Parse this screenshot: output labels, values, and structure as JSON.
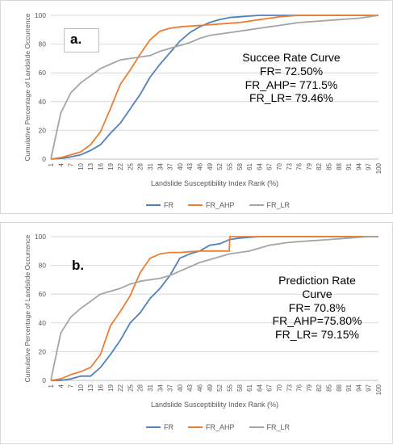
{
  "chart_data": [
    {
      "type": "line",
      "panel_label": "a.",
      "annotation": [
        "Succee Rate Curve",
        "FR= 72.50%",
        "FR_AHP= 771.5%",
        "FR_LR= 79.46%"
      ],
      "ylabel": "Cumulative Percentage of Landslide Occurrence",
      "xlabel": "Landslide Susceptibility Index Rank (%)",
      "ylim": [
        0,
        100
      ],
      "yticks": [
        0,
        20,
        40,
        60,
        80,
        100
      ],
      "x_ticks": [
        "1",
        "4",
        "7",
        "10",
        "13",
        "16",
        "19",
        "22",
        "25",
        "28",
        "31",
        "34",
        "37",
        "40",
        "43",
        "46",
        "49",
        "52",
        "55",
        "58",
        "61",
        "64",
        "67",
        "70",
        "73",
        "76",
        "79",
        "82",
        "85",
        "88",
        "91",
        "94",
        "97",
        "100"
      ],
      "grid": true,
      "legend_position": "bottom",
      "series": [
        {
          "name": "FR",
          "color": "#4f81bd",
          "x": [
            1,
            4,
            7,
            10,
            13,
            16,
            19,
            22,
            25,
            28,
            31,
            34,
            37,
            40,
            43,
            46,
            49,
            52,
            55,
            58,
            61,
            64,
            67,
            70,
            73,
            76,
            79,
            82,
            85,
            88,
            91,
            94,
            97,
            100
          ],
          "values": [
            0,
            0.5,
            1.5,
            3,
            6,
            10,
            18,
            25,
            35,
            45,
            57,
            66,
            74,
            82,
            88,
            92,
            95,
            97,
            98.5,
            99,
            99.5,
            100,
            100,
            100,
            100,
            100,
            100,
            100,
            100,
            100,
            100,
            100,
            100,
            100
          ]
        },
        {
          "name": "FR_AHP",
          "color": "#ed7d31",
          "x": [
            1,
            4,
            7,
            10,
            13,
            16,
            19,
            22,
            25,
            28,
            31,
            34,
            37,
            40,
            43,
            46,
            49,
            52,
            55,
            58,
            61,
            64,
            67,
            70,
            73,
            76,
            79,
            82,
            85,
            88,
            91,
            94,
            97,
            100
          ],
          "values": [
            0,
            1,
            3,
            5,
            10,
            19,
            35,
            52,
            62,
            73,
            83,
            89,
            91,
            92,
            92.5,
            93,
            93.5,
            94,
            94.5,
            95,
            96,
            97,
            98,
            99,
            99.5,
            100,
            100,
            100,
            100,
            100,
            100,
            100,
            100,
            100
          ]
        },
        {
          "name": "FR_LR",
          "color": "#a5a5a5",
          "x": [
            1,
            4,
            7,
            10,
            13,
            16,
            19,
            22,
            25,
            28,
            31,
            34,
            37,
            40,
            43,
            46,
            49,
            52,
            55,
            58,
            61,
            64,
            67,
            70,
            73,
            76,
            79,
            82,
            85,
            88,
            91,
            94,
            97,
            100
          ],
          "values": [
            0,
            32,
            46,
            53,
            58,
            63,
            66,
            69,
            70,
            71,
            72,
            75,
            77,
            79,
            81,
            84,
            86,
            87,
            88,
            89,
            90,
            91,
            92,
            93,
            94,
            95,
            95.5,
            96,
            96.5,
            97,
            97.5,
            98,
            99,
            100
          ]
        }
      ]
    },
    {
      "type": "line",
      "panel_label": "b.",
      "annotation": [
        "Prediction Rate",
        "Curve",
        "FR= 70.8%",
        "FR_AHP=75.80%",
        "FR_LR= 79.15%"
      ],
      "ylabel": "Cumulative Percentage of Landslide Occurrence",
      "xlabel": "Landslide Susceptibility Index Rank (%)",
      "ylim": [
        0,
        100
      ],
      "yticks": [
        0,
        20,
        40,
        60,
        80,
        100
      ],
      "x_ticks": [
        "1",
        "4",
        "7",
        "10",
        "13",
        "16",
        "19",
        "22",
        "25",
        "28",
        "31",
        "34",
        "37",
        "40",
        "43",
        "46",
        "49",
        "52",
        "55",
        "58",
        "61",
        "64",
        "67",
        "70",
        "73",
        "76",
        "79",
        "82",
        "85",
        "88",
        "91",
        "94",
        "97",
        "100"
      ],
      "grid": true,
      "legend_position": "bottom",
      "series": [
        {
          "name": "FR",
          "color": "#4f81bd",
          "x": [
            1,
            4,
            7,
            10,
            13,
            16,
            19,
            22,
            25,
            28,
            31,
            34,
            37,
            40,
            43,
            46,
            49,
            52,
            55,
            58,
            61,
            64,
            67,
            70,
            73,
            76,
            79,
            82,
            85,
            88,
            91,
            94,
            97,
            100
          ],
          "values": [
            0,
            0,
            1,
            3,
            3,
            9,
            18,
            28,
            40,
            47,
            57,
            64,
            73,
            85,
            88,
            90,
            94,
            95,
            98,
            99,
            99.5,
            100,
            100,
            100,
            100,
            100,
            100,
            100,
            100,
            100,
            100,
            100,
            100,
            100
          ]
        },
        {
          "name": "FR_AHP",
          "color": "#ed7d31",
          "x": [
            1,
            4,
            7,
            10,
            13,
            16,
            19,
            22,
            25,
            28,
            31,
            34,
            37,
            40,
            43,
            46,
            49,
            52,
            54.9,
            55.1,
            58,
            61,
            64,
            67,
            70,
            73,
            76,
            79,
            82,
            85,
            88,
            91,
            94,
            97,
            100
          ],
          "values": [
            0,
            1,
            4,
            6,
            9,
            18,
            38,
            48,
            59,
            75,
            85,
            88,
            89,
            89,
            89.5,
            90,
            90,
            90,
            90,
            100,
            100,
            100,
            100,
            100,
            100,
            100,
            100,
            100,
            100,
            100,
            100,
            100,
            100,
            100,
            100
          ]
        },
        {
          "name": "FR_LR",
          "color": "#a5a5a5",
          "x": [
            1,
            4,
            7,
            10,
            13,
            16,
            19,
            22,
            25,
            28,
            31,
            34,
            37,
            40,
            43,
            46,
            49,
            52,
            55,
            58,
            61,
            64,
            67,
            70,
            73,
            76,
            79,
            82,
            85,
            88,
            91,
            94,
            97,
            100
          ],
          "values": [
            0,
            33,
            44,
            50,
            55,
            60,
            62,
            64,
            67,
            69,
            70,
            71,
            73,
            76,
            79,
            82,
            84,
            86,
            88,
            89,
            90,
            92,
            94,
            95,
            96,
            96.5,
            97,
            97.5,
            98,
            98.5,
            99,
            99.5,
            100,
            100
          ]
        }
      ]
    }
  ]
}
